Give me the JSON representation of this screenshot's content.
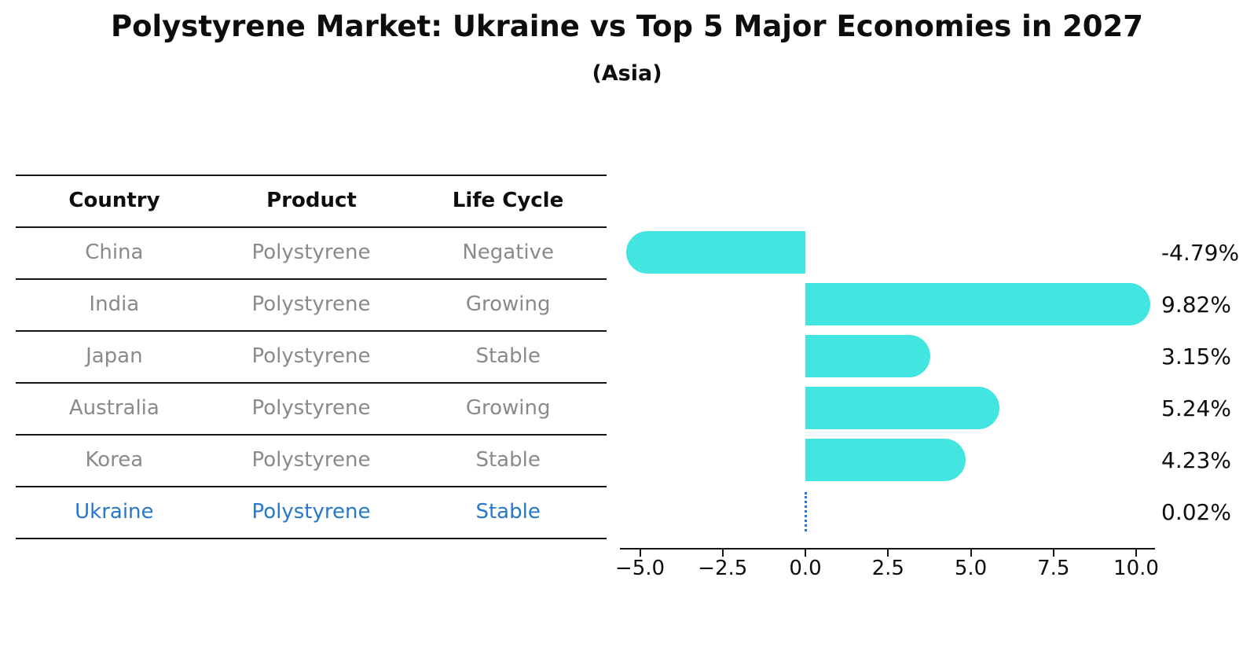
{
  "title": "Polystyrene Market: Ukraine vs Top 5 Major Economies in 2027",
  "subtitle": "(Asia)",
  "table": {
    "headers": [
      "Country",
      "Product",
      "Life Cycle"
    ]
  },
  "chart_data": {
    "type": "bar",
    "orientation": "horizontal",
    "title": "Polystyrene Market: Ukraine vs Top 5 Major Economies in 2027",
    "subtitle": "(Asia)",
    "value_unit": "percent",
    "rows": [
      {
        "country": "China",
        "product": "Polystyrene",
        "life_cycle": "Negative",
        "value": -4.79,
        "label": "-4.79%",
        "highlight": false
      },
      {
        "country": "India",
        "product": "Polystyrene",
        "life_cycle": "Growing",
        "value": 9.82,
        "label": "9.82%",
        "highlight": false
      },
      {
        "country": "Japan",
        "product": "Polystyrene",
        "life_cycle": "Stable",
        "value": 3.15,
        "label": "3.15%",
        "highlight": false
      },
      {
        "country": "Australia",
        "product": "Polystyrene",
        "life_cycle": "Growing",
        "value": 5.24,
        "label": "5.24%",
        "highlight": false
      },
      {
        "country": "Korea",
        "product": "Polystyrene",
        "life_cycle": "Stable",
        "value": 4.23,
        "label": "4.23%",
        "highlight": false
      },
      {
        "country": "Ukraine",
        "product": "Polystyrene",
        "life_cycle": "Stable",
        "value": 0.02,
        "label": "0.02%",
        "highlight": true
      }
    ],
    "x_ticks": [
      {
        "label": "−5.0",
        "value": -5.0
      },
      {
        "label": "−2.5",
        "value": -2.5
      },
      {
        "label": "0.0",
        "value": 0.0
      },
      {
        "label": "2.5",
        "value": 2.5
      },
      {
        "label": "5.0",
        "value": 5.0
      },
      {
        "label": "7.5",
        "value": 7.5
      },
      {
        "label": "10.0",
        "value": 10.0
      }
    ],
    "xlim": [
      -5.6,
      10.6
    ],
    "legend": null,
    "grid": false,
    "colors": {
      "bar": "#42E5E0",
      "highlight": "#2677CE",
      "table_text": "#8a8a8a",
      "heading_text": "#0d0d0d",
      "line": "#151515"
    }
  }
}
